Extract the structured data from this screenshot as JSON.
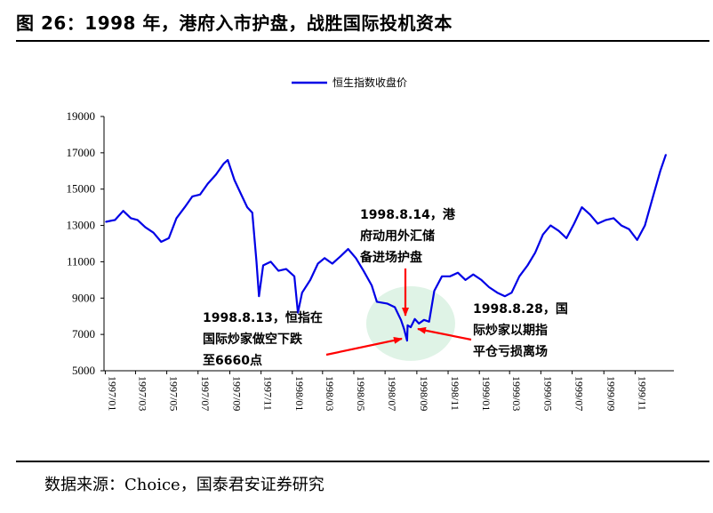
{
  "title": "图 26：1998 年，港府入市护盘，战胜国际投机资本",
  "source": "数据来源：Choice，国泰君安证券研究",
  "chart_data": {
    "type": "line",
    "legend": "top-center",
    "grid": false,
    "ylim": [
      5000,
      19000
    ],
    "yticks": [
      "5000",
      "7000",
      "9000",
      "11000",
      "13000",
      "15000",
      "17000",
      "19000"
    ],
    "xticks": [
      "1997/01",
      "1997/03",
      "1997/05",
      "1997/07",
      "1997/09",
      "1997/11",
      "1998/01",
      "1998/03",
      "1998/05",
      "1998/07",
      "1998/09",
      "1998/11",
      "1999/01",
      "1999/03",
      "1999/05",
      "1999/07",
      "1999/09",
      "1999/11"
    ],
    "series": [
      {
        "name": "恒生指数收盘价",
        "color": "#0000e6",
        "x": [
          "1997/01/02",
          "1997/01/20",
          "1997/02/05",
          "1997/02/20",
          "1997/03/05",
          "1997/03/20",
          "1997/04/05",
          "1997/04/20",
          "1997/05/05",
          "1997/05/20",
          "1997/06/05",
          "1997/06/20",
          "1997/07/05",
          "1997/07/20",
          "1997/08/05",
          "1997/08/20",
          "1997/08/28",
          "1997/09/10",
          "1997/09/25",
          "1997/10/05",
          "1997/10/15",
          "1997/10/23",
          "1997/10/28",
          "1997/11/05",
          "1997/11/20",
          "1997/12/05",
          "1997/12/20",
          "1998/01/05",
          "1998/01/12",
          "1998/01/20",
          "1998/02/05",
          "1998/02/20",
          "1998/03/05",
          "1998/03/20",
          "1998/04/05",
          "1998/04/20",
          "1998/05/05",
          "1998/05/20",
          "1998/06/05",
          "1998/06/15",
          "1998/07/05",
          "1998/07/20",
          "1998/08/01",
          "1998/08/07",
          "1998/08/13",
          "1998/08/14",
          "1998/08/20",
          "1998/08/28",
          "1998/09/05",
          "1998/09/15",
          "1998/09/25",
          "1998/10/05",
          "1998/10/20",
          "1998/11/05",
          "1998/11/20",
          "1998/12/05",
          "1998/12/20",
          "1999/01/05",
          "1999/01/20",
          "1999/02/05",
          "1999/02/20",
          "1999/03/05",
          "1999/03/20",
          "1999/04/05",
          "1999/04/20",
          "1999/05/05",
          "1999/05/20",
          "1999/06/05",
          "1999/06/20",
          "1999/07/05",
          "1999/07/20",
          "1999/08/05",
          "1999/08/20",
          "1999/09/05",
          "1999/09/20",
          "1999/10/05",
          "1999/10/20",
          "1999/11/05",
          "1999/11/20",
          "1999/12/05",
          "1999/12/20",
          "1999/12/31"
        ],
        "values": [
          13200,
          13300,
          13800,
          13400,
          13300,
          12900,
          12600,
          12100,
          12300,
          13400,
          14000,
          14600,
          14700,
          15300,
          15800,
          16400,
          16600,
          15500,
          14600,
          14000,
          13700,
          11000,
          9100,
          10800,
          11000,
          10500,
          10600,
          10200,
          8200,
          9300,
          10000,
          10900,
          11200,
          10900,
          11300,
          11700,
          11200,
          10500,
          9700,
          8800,
          8700,
          8500,
          7800,
          7300,
          6660,
          7500,
          7400,
          7850,
          7600,
          7800,
          7700,
          9400,
          10200,
          10200,
          10400,
          10000,
          10300,
          10000,
          9600,
          9300,
          9100,
          9300,
          10200,
          10800,
          11500,
          12500,
          13000,
          12700,
          12300,
          13100,
          14000,
          13600,
          13100,
          13300,
          13400,
          13000,
          12800,
          12200,
          13000,
          14500,
          16000,
          16900
        ]
      }
    ],
    "annotations": [
      {
        "lines": [
          "1998.8.14，港",
          "府动用外汇储",
          "备进场护盘"
        ]
      },
      {
        "lines": [
          "1998.8.13，恒指在",
          "国际炒家做空下跌",
          "至6660点"
        ]
      },
      {
        "lines": [
          "1998.8.28，国",
          "际炒家以期指",
          "平仓亏损离场"
        ]
      }
    ]
  }
}
